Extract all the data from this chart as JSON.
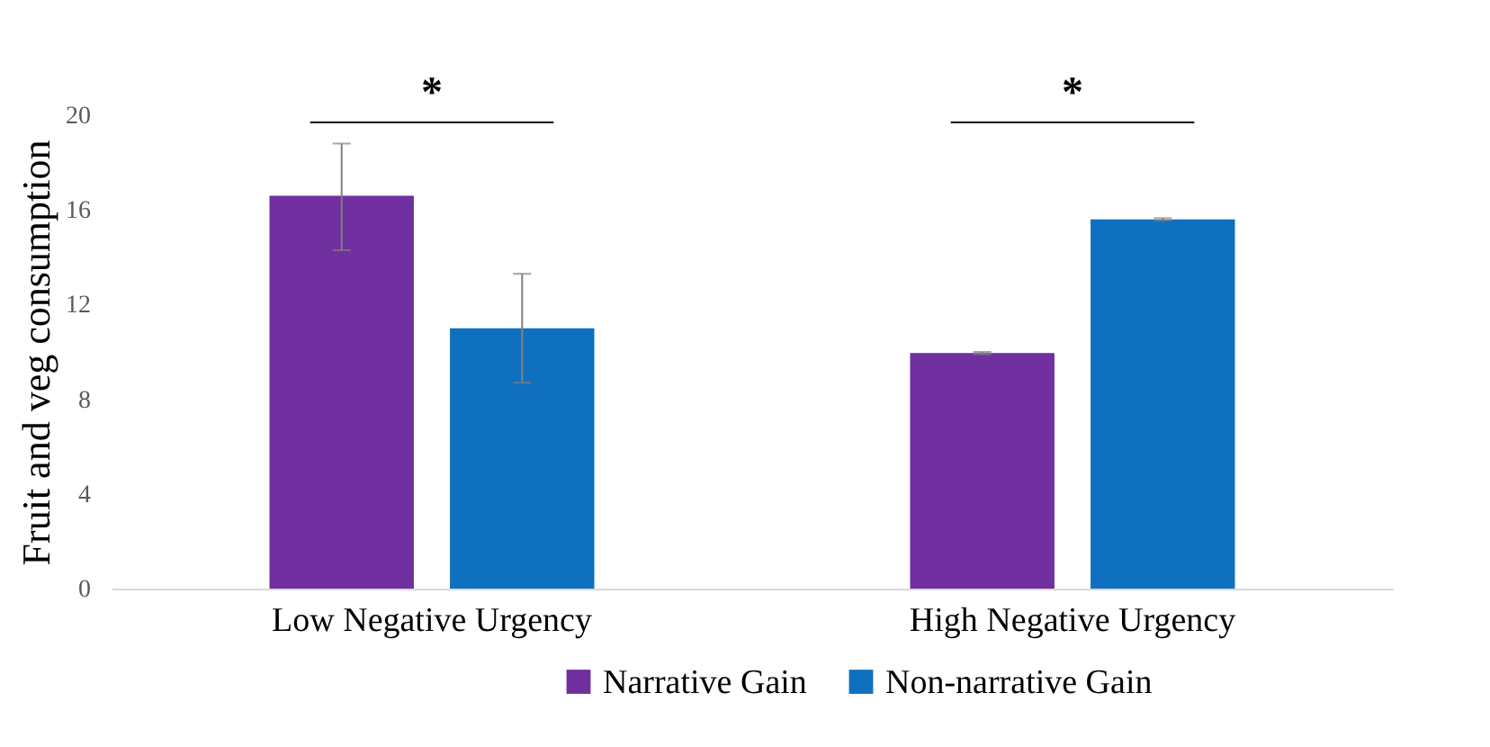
{
  "chart_data": {
    "type": "bar",
    "ylabel": "Fruit and veg consumption",
    "categories": [
      "Low Negative Urgency",
      "High Negative Urgency"
    ],
    "series": [
      {
        "name": "Narrative Gain",
        "color": "#7030a0",
        "values": [
          16.6,
          9.95
        ],
        "errors": [
          [
            14.3,
            18.8
          ],
          [
            9.9,
            10.0
          ]
        ]
      },
      {
        "name": "Non-narrative Gain",
        "color": "#1070c0",
        "values": [
          11.0,
          15.6
        ],
        "errors": [
          [
            8.7,
            13.3
          ],
          [
            15.55,
            15.65
          ]
        ]
      }
    ],
    "ylim": [
      0,
      20
    ],
    "yticks": [
      0,
      4,
      8,
      12,
      16,
      20
    ],
    "grid": false,
    "legend": "bottom",
    "annotations": [
      "*",
      "*"
    ]
  }
}
